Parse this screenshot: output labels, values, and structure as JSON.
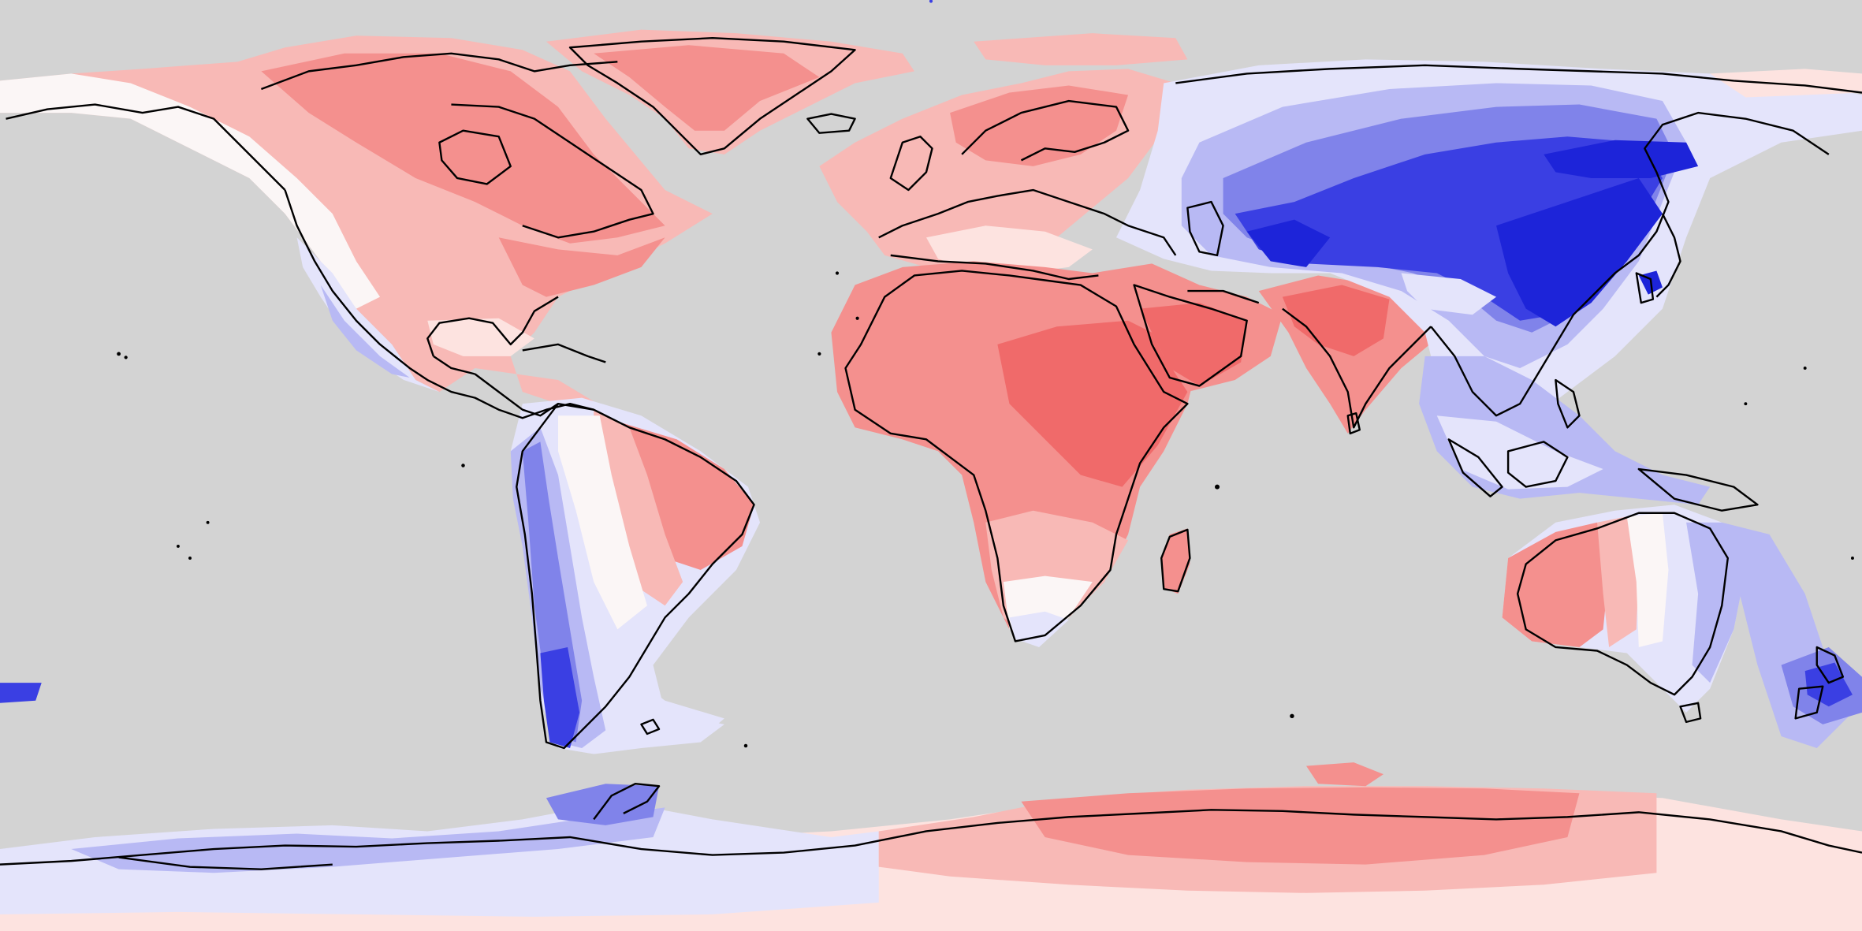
{
  "map": {
    "projection": "equirectangular",
    "ocean_color": "#d3d3d3",
    "coastline_color": "#000000",
    "palette": {
      "strong_warm": "#f06a6a",
      "warm": "#f4908e",
      "mild_warm": "#f8b9b6",
      "faint_warm": "#fde3e0",
      "neutral": "#fbf6f6",
      "faint_cool": "#e4e4fb",
      "mild_cool": "#b8b9f4",
      "cool": "#8083ea",
      "strong_cool": "#3a3fe3",
      "extreme_cool": "#1d24d9"
    }
  }
}
